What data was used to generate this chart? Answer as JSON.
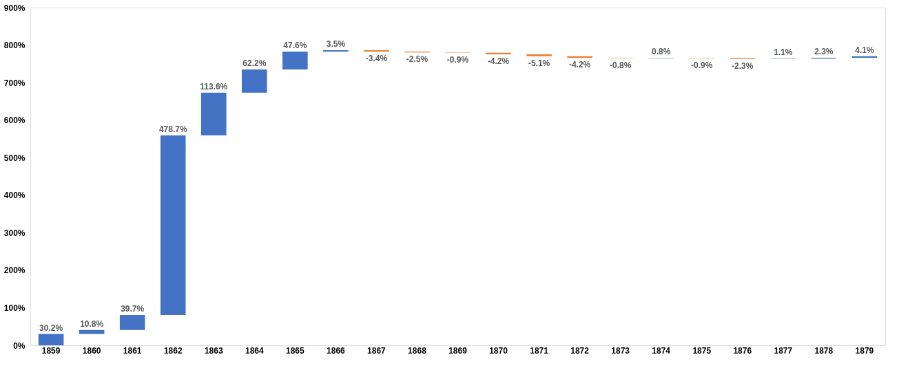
{
  "chart_data": {
    "type": "bar",
    "categories": [
      "1859",
      "1860",
      "1861",
      "1862",
      "1863",
      "1864",
      "1865",
      "1866",
      "1867",
      "1868",
      "1869",
      "1870",
      "1871",
      "1872",
      "1873",
      "1874",
      "1875",
      "1876",
      "1877",
      "1878",
      "1879"
    ],
    "values": [
      30.2,
      10.8,
      39.7,
      478.7,
      113.6,
      62.2,
      47.6,
      3.5,
      -3.4,
      -2.5,
      -0.9,
      -4.2,
      -5.1,
      -4.2,
      -0.8,
      0.8,
      -0.9,
      -2.3,
      1.1,
      2.3,
      4.1
    ],
    "base": [
      0,
      30.2,
      41.0,
      80.7,
      559.4,
      673.0,
      735.2,
      782.8,
      786.3,
      782.9,
      780.4,
      779.5,
      775.3,
      770.2,
      766.0,
      765.2,
      766.0,
      765.1,
      762.8,
      763.9,
      766.2
    ],
    "colors": [
      "#4472c4",
      "#4472c4",
      "#4472c4",
      "#4472c4",
      "#4472c4",
      "#4472c4",
      "#4472c4",
      "#4472c4",
      "#ed7d31",
      "#ed7d31",
      "#ed7d31",
      "#ed7d31",
      "#ed7d31",
      "#ed7d31",
      "#ed7d31",
      "#4472c4",
      "#ed7d31",
      "#ed7d31",
      "#4472c4",
      "#4472c4",
      "#4472c4"
    ],
    "value_labels": [
      "30.2%",
      "10.8%",
      "39.7%",
      "478.7%",
      "113.6%",
      "62.2%",
      "47.6%",
      "3.5%",
      "-3.4%",
      "-2.5%",
      "-0.9%",
      "-4.2%",
      "-5.1%",
      "-4.2%",
      "-0.8%",
      "0.8%",
      "-0.9%",
      "-2.3%",
      "1.1%",
      "2.3%",
      "4.1%"
    ],
    "ylim": [
      0,
      900
    ],
    "yticks": [
      {
        "value": 0,
        "label": "0%"
      },
      {
        "value": 100,
        "label": "100%"
      },
      {
        "value": 200,
        "label": "200%"
      },
      {
        "value": 300,
        "label": "300%"
      },
      {
        "value": 400,
        "label": "400%"
      },
      {
        "value": 500,
        "label": "500%"
      },
      {
        "value": 600,
        "label": "600%"
      },
      {
        "value": 700,
        "label": "700%"
      },
      {
        "value": 800,
        "label": "800%"
      },
      {
        "value": 900,
        "label": "900%"
      }
    ],
    "grid": false
  }
}
